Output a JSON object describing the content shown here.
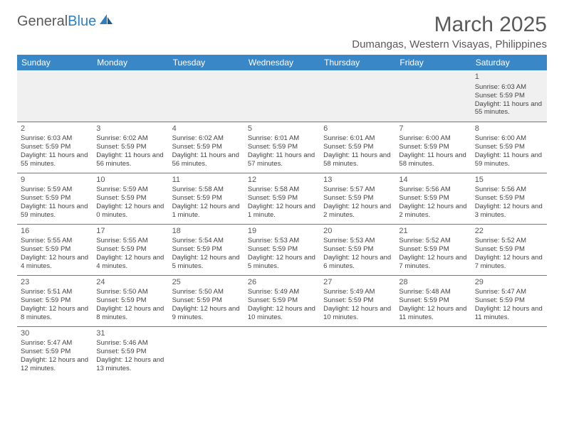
{
  "logo": {
    "text1": "General",
    "text2": "Blue"
  },
  "title": "March 2025",
  "location": "Dumangas, Western Visayas, Philippines",
  "colors": {
    "header_bg": "#3a87c8",
    "header_text": "#ffffff",
    "text_gray": "#5a5a5a",
    "cell_text": "#444444",
    "firstrow_bg": "#f0f0f0",
    "line": "#3a87c8"
  },
  "weekdays": [
    "Sunday",
    "Monday",
    "Tuesday",
    "Wednesday",
    "Thursday",
    "Friday",
    "Saturday"
  ],
  "weeks": [
    [
      null,
      null,
      null,
      null,
      null,
      null,
      {
        "n": "1",
        "sr": "Sunrise: 6:03 AM",
        "ss": "Sunset: 5:59 PM",
        "dl": "Daylight: 11 hours and 55 minutes."
      }
    ],
    [
      {
        "n": "2",
        "sr": "Sunrise: 6:03 AM",
        "ss": "Sunset: 5:59 PM",
        "dl": "Daylight: 11 hours and 55 minutes."
      },
      {
        "n": "3",
        "sr": "Sunrise: 6:02 AM",
        "ss": "Sunset: 5:59 PM",
        "dl": "Daylight: 11 hours and 56 minutes."
      },
      {
        "n": "4",
        "sr": "Sunrise: 6:02 AM",
        "ss": "Sunset: 5:59 PM",
        "dl": "Daylight: 11 hours and 56 minutes."
      },
      {
        "n": "5",
        "sr": "Sunrise: 6:01 AM",
        "ss": "Sunset: 5:59 PM",
        "dl": "Daylight: 11 hours and 57 minutes."
      },
      {
        "n": "6",
        "sr": "Sunrise: 6:01 AM",
        "ss": "Sunset: 5:59 PM",
        "dl": "Daylight: 11 hours and 58 minutes."
      },
      {
        "n": "7",
        "sr": "Sunrise: 6:00 AM",
        "ss": "Sunset: 5:59 PM",
        "dl": "Daylight: 11 hours and 58 minutes."
      },
      {
        "n": "8",
        "sr": "Sunrise: 6:00 AM",
        "ss": "Sunset: 5:59 PM",
        "dl": "Daylight: 11 hours and 59 minutes."
      }
    ],
    [
      {
        "n": "9",
        "sr": "Sunrise: 5:59 AM",
        "ss": "Sunset: 5:59 PM",
        "dl": "Daylight: 11 hours and 59 minutes."
      },
      {
        "n": "10",
        "sr": "Sunrise: 5:59 AM",
        "ss": "Sunset: 5:59 PM",
        "dl": "Daylight: 12 hours and 0 minutes."
      },
      {
        "n": "11",
        "sr": "Sunrise: 5:58 AM",
        "ss": "Sunset: 5:59 PM",
        "dl": "Daylight: 12 hours and 1 minute."
      },
      {
        "n": "12",
        "sr": "Sunrise: 5:58 AM",
        "ss": "Sunset: 5:59 PM",
        "dl": "Daylight: 12 hours and 1 minute."
      },
      {
        "n": "13",
        "sr": "Sunrise: 5:57 AM",
        "ss": "Sunset: 5:59 PM",
        "dl": "Daylight: 12 hours and 2 minutes."
      },
      {
        "n": "14",
        "sr": "Sunrise: 5:56 AM",
        "ss": "Sunset: 5:59 PM",
        "dl": "Daylight: 12 hours and 2 minutes."
      },
      {
        "n": "15",
        "sr": "Sunrise: 5:56 AM",
        "ss": "Sunset: 5:59 PM",
        "dl": "Daylight: 12 hours and 3 minutes."
      }
    ],
    [
      {
        "n": "16",
        "sr": "Sunrise: 5:55 AM",
        "ss": "Sunset: 5:59 PM",
        "dl": "Daylight: 12 hours and 4 minutes."
      },
      {
        "n": "17",
        "sr": "Sunrise: 5:55 AM",
        "ss": "Sunset: 5:59 PM",
        "dl": "Daylight: 12 hours and 4 minutes."
      },
      {
        "n": "18",
        "sr": "Sunrise: 5:54 AM",
        "ss": "Sunset: 5:59 PM",
        "dl": "Daylight: 12 hours and 5 minutes."
      },
      {
        "n": "19",
        "sr": "Sunrise: 5:53 AM",
        "ss": "Sunset: 5:59 PM",
        "dl": "Daylight: 12 hours and 5 minutes."
      },
      {
        "n": "20",
        "sr": "Sunrise: 5:53 AM",
        "ss": "Sunset: 5:59 PM",
        "dl": "Daylight: 12 hours and 6 minutes."
      },
      {
        "n": "21",
        "sr": "Sunrise: 5:52 AM",
        "ss": "Sunset: 5:59 PM",
        "dl": "Daylight: 12 hours and 7 minutes."
      },
      {
        "n": "22",
        "sr": "Sunrise: 5:52 AM",
        "ss": "Sunset: 5:59 PM",
        "dl": "Daylight: 12 hours and 7 minutes."
      }
    ],
    [
      {
        "n": "23",
        "sr": "Sunrise: 5:51 AM",
        "ss": "Sunset: 5:59 PM",
        "dl": "Daylight: 12 hours and 8 minutes."
      },
      {
        "n": "24",
        "sr": "Sunrise: 5:50 AM",
        "ss": "Sunset: 5:59 PM",
        "dl": "Daylight: 12 hours and 8 minutes."
      },
      {
        "n": "25",
        "sr": "Sunrise: 5:50 AM",
        "ss": "Sunset: 5:59 PM",
        "dl": "Daylight: 12 hours and 9 minutes."
      },
      {
        "n": "26",
        "sr": "Sunrise: 5:49 AM",
        "ss": "Sunset: 5:59 PM",
        "dl": "Daylight: 12 hours and 10 minutes."
      },
      {
        "n": "27",
        "sr": "Sunrise: 5:49 AM",
        "ss": "Sunset: 5:59 PM",
        "dl": "Daylight: 12 hours and 10 minutes."
      },
      {
        "n": "28",
        "sr": "Sunrise: 5:48 AM",
        "ss": "Sunset: 5:59 PM",
        "dl": "Daylight: 12 hours and 11 minutes."
      },
      {
        "n": "29",
        "sr": "Sunrise: 5:47 AM",
        "ss": "Sunset: 5:59 PM",
        "dl": "Daylight: 12 hours and 11 minutes."
      }
    ],
    [
      {
        "n": "30",
        "sr": "Sunrise: 5:47 AM",
        "ss": "Sunset: 5:59 PM",
        "dl": "Daylight: 12 hours and 12 minutes."
      },
      {
        "n": "31",
        "sr": "Sunrise: 5:46 AM",
        "ss": "Sunset: 5:59 PM",
        "dl": "Daylight: 12 hours and 13 minutes."
      },
      null,
      null,
      null,
      null,
      null
    ]
  ]
}
